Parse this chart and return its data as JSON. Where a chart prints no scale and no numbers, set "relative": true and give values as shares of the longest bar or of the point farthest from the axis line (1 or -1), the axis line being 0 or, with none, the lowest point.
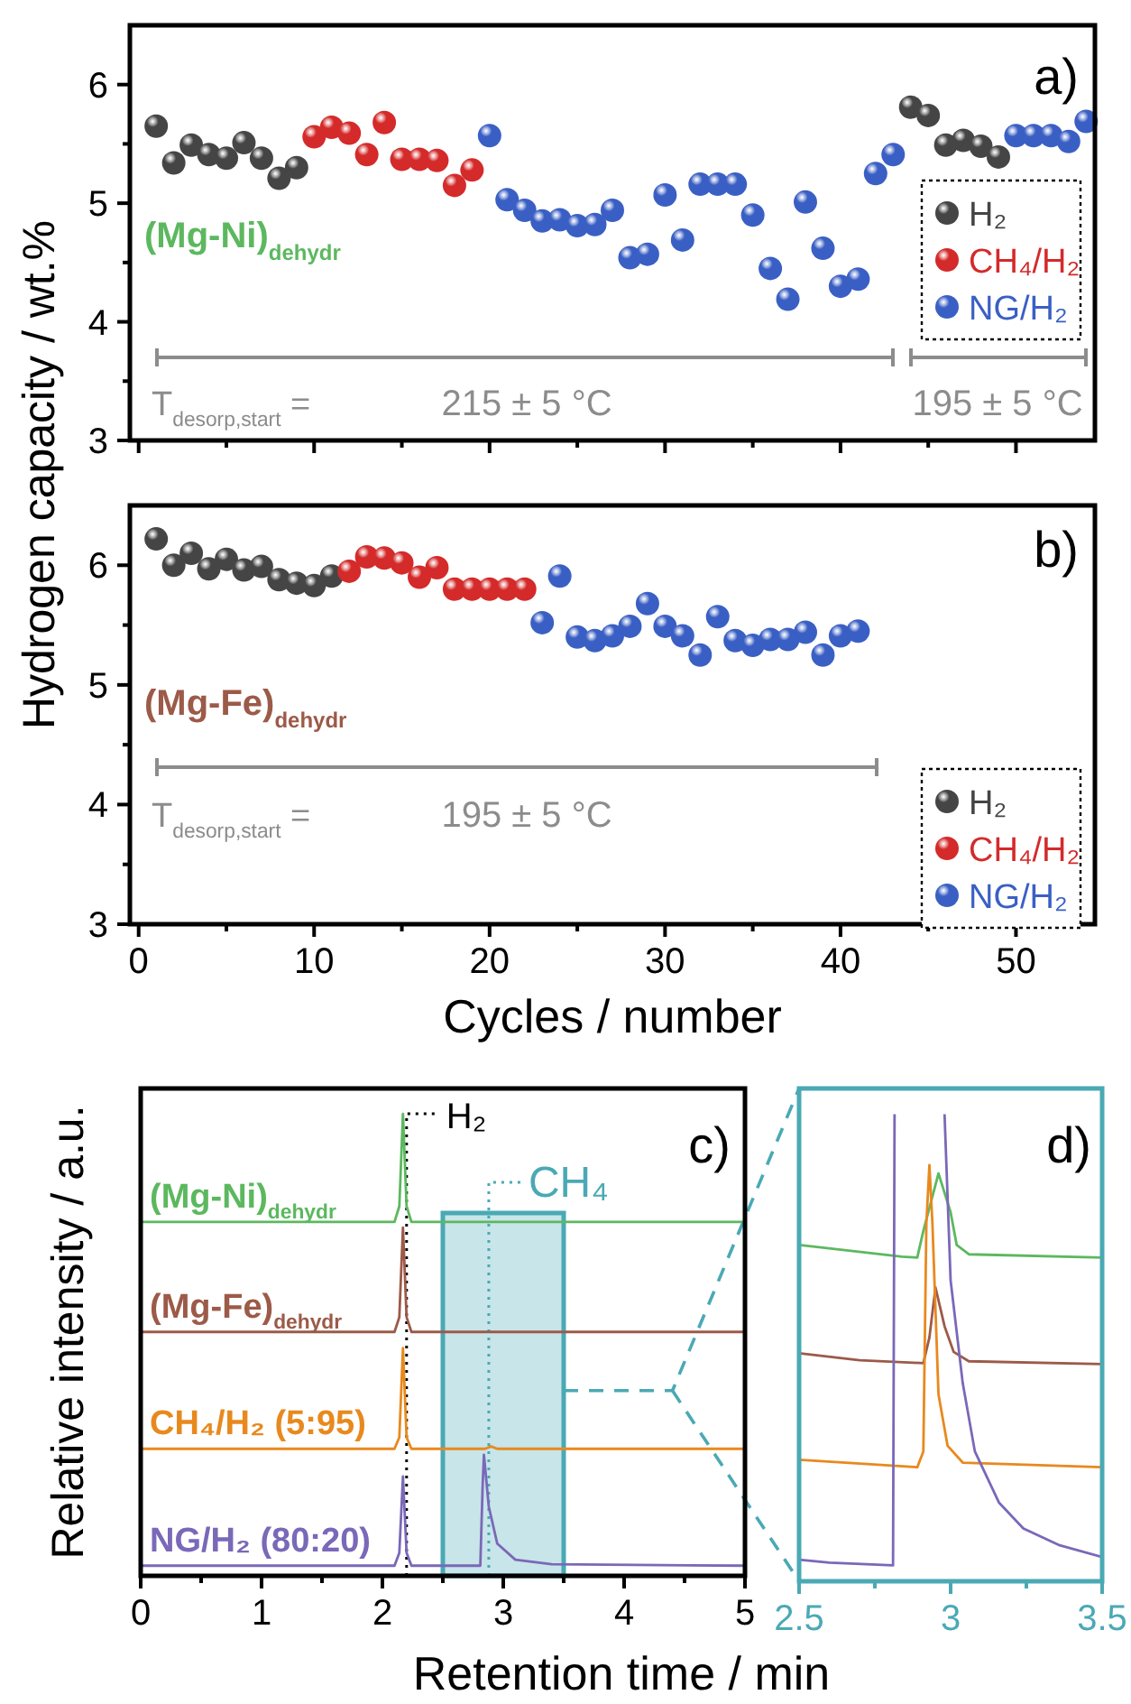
{
  "chart_data": [
    {
      "type": "scatter",
      "ylabel": "Hydrogen capacity / wt.%",
      "xlim": [
        -0.5,
        54.5
      ],
      "ylim": [
        3,
        6.5
      ],
      "xticks": [
        0,
        {
          "value": 5,
          "label": null
        },
        10,
        {
          "value": 15,
          "label": null
        },
        20,
        {
          "value": 25,
          "label": null
        },
        30,
        {
          "value": 35,
          "label": null
        },
        40,
        {
          "value": 45,
          "label": null
        },
        50
      ],
      "yticks": [
        3,
        {
          "value": 3.5,
          "label": null
        },
        4,
        {
          "value": 4.5,
          "label": null
        },
        5,
        {
          "value": 5.5,
          "label": null
        },
        6
      ],
      "tick_labels": "y",
      "marker": "circle",
      "legend": "right",
      "series": [
        {
          "name": "H₂",
          "color": "#454545",
          "x": [
            1,
            2,
            3,
            4,
            5,
            6,
            7,
            8,
            9,
            44,
            45,
            46,
            47,
            48,
            49
          ],
          "values": [
            5.65,
            5.34,
            5.49,
            5.41,
            5.38,
            5.51,
            5.38,
            5.21,
            5.3,
            5.81,
            5.74,
            5.49,
            5.53,
            5.48,
            5.39
          ]
        },
        {
          "name": "CH₄/H₂",
          "color": "#d42a2a",
          "x": [
            10,
            11,
            12,
            13,
            14,
            15,
            16,
            17,
            18,
            19
          ],
          "values": [
            5.56,
            5.64,
            5.59,
            5.41,
            5.68,
            5.37,
            5.37,
            5.36,
            5.15,
            5.28
          ]
        },
        {
          "name": "NG/H₂",
          "color": "#3a5fc4",
          "x": [
            20,
            21,
            22,
            23,
            24,
            25,
            26,
            27,
            28,
            29,
            30,
            31,
            32,
            33,
            34,
            35,
            36,
            37,
            38,
            39,
            40,
            41,
            42,
            43,
            50,
            51,
            52,
            53,
            54
          ],
          "values": [
            5.57,
            5.03,
            4.94,
            4.85,
            4.86,
            4.81,
            4.82,
            4.94,
            4.54,
            4.57,
            5.07,
            4.69,
            5.16,
            5.16,
            5.16,
            4.9,
            4.45,
            4.19,
            5.01,
            4.62,
            4.3,
            4.36,
            5.25,
            5.41,
            5.57,
            5.57,
            5.57,
            5.52,
            5.69
          ]
        }
      ],
      "annotations": [
        "a)",
        "(Mg-Ni)$_{dehydr}$",
        "T$_{desorp,start}$ =",
        "215 ± 5 °C",
        "195 ± 5 °C"
      ]
    },
    {
      "type": "scatter",
      "xlabel": "Cycles / number",
      "xlim": [
        -0.5,
        54.5
      ],
      "ylim": [
        3,
        6.5
      ],
      "xticks": [
        0,
        {
          "value": 5,
          "label": null
        },
        10,
        {
          "value": 15,
          "label": null
        },
        20,
        {
          "value": 25,
          "label": null
        },
        30,
        {
          "value": 35,
          "label": null
        },
        40,
        {
          "value": 45,
          "label": null
        },
        50
      ],
      "yticks": [
        3,
        {
          "value": 3.5,
          "label": null
        },
        4,
        {
          "value": 4.5,
          "label": null
        },
        5,
        {
          "value": 5.5,
          "label": null
        },
        6
      ],
      "marker": "circle",
      "legend": "bottom right",
      "series": [
        {
          "name": "H₂",
          "color": "#454545",
          "x": [
            1,
            2,
            3,
            4,
            5,
            6,
            7,
            8,
            9,
            10,
            11
          ],
          "values": [
            6.22,
            6.0,
            6.1,
            5.97,
            6.05,
            5.96,
            5.99,
            5.88,
            5.85,
            5.83,
            5.91
          ]
        },
        {
          "name": "CH₄/H₂",
          "color": "#d42a2a",
          "x": [
            12,
            13,
            14,
            15,
            16,
            17,
            18,
            19,
            20,
            21,
            22
          ],
          "values": [
            5.95,
            6.07,
            6.06,
            6.02,
            5.9,
            5.98,
            5.8,
            5.8,
            5.8,
            5.8,
            5.8
          ]
        },
        {
          "name": "NG/H₂",
          "color": "#3a5fc4",
          "x": [
            23,
            24,
            25,
            26,
            27,
            28,
            29,
            30,
            31,
            32,
            33,
            34,
            35,
            36,
            37,
            38,
            39,
            40,
            41
          ],
          "values": [
            5.52,
            5.91,
            5.4,
            5.37,
            5.41,
            5.49,
            5.68,
            5.49,
            5.41,
            5.25,
            5.57,
            5.37,
            5.33,
            5.38,
            5.38,
            5.44,
            5.25,
            5.41,
            5.45
          ]
        }
      ],
      "annotations": [
        "b)",
        "(Mg-Fe)$_{dehydr}$",
        "T$_{desorp,start}$ =",
        "195 ± 5 °C"
      ]
    },
    {
      "type": "line",
      "relative": true,
      "xlabel": "Retention time / min",
      "ylabel": "Relative intensity / a.u.",
      "xlim": [
        0,
        5
      ],
      "xticks": [
        0,
        {
          "value": 0.5,
          "label": null
        },
        1,
        {
          "value": 1.5,
          "label": null
        },
        2,
        {
          "value": 2.5,
          "label": null
        },
        3,
        {
          "value": 3.5,
          "label": null
        },
        4,
        {
          "value": 4.5,
          "label": null
        },
        5
      ],
      "tick_labels": "x",
      "line_style": "solid",
      "series": [
        {
          "name": "(Mg-Ni)$_{dehydr}$",
          "color": "#5cb85f",
          "x": [
            0,
            2.1,
            2.14,
            2.17,
            2.2,
            2.24,
            5
          ],
          "values": [
            0.766,
            0.766,
            0.8,
            1.0,
            0.8,
            0.766,
            0.766
          ]
        },
        {
          "name": "(Mg-Fe)$_{dehydr}$",
          "color": "#9c5a48",
          "x": [
            0,
            2.1,
            2.14,
            2.17,
            2.2,
            2.24,
            5
          ],
          "values": [
            0.528,
            0.528,
            0.56,
            0.754,
            0.56,
            0.528,
            0.528
          ]
        },
        {
          "name": "CH₄/H₂ (5:95)",
          "color": "#e8891e",
          "x": [
            0,
            2.1,
            2.14,
            2.17,
            2.2,
            2.24,
            2.85,
            2.9,
            2.95,
            5
          ],
          "values": [
            0.275,
            0.275,
            0.3,
            0.493,
            0.3,
            0.275,
            0.275,
            0.28,
            0.275,
            0.275
          ]
        },
        {
          "name": "NG/H₂ (80:20)",
          "color": "#7a68b8",
          "x": [
            0,
            2.1,
            2.14,
            2.17,
            2.2,
            2.24,
            2.81,
            2.83,
            2.84,
            2.88,
            2.95,
            3.1,
            3.4,
            5
          ],
          "values": [
            0.022,
            0.022,
            0.05,
            0.215,
            0.05,
            0.022,
            0.022,
            0.2,
            0.262,
            0.15,
            0.07,
            0.035,
            0.025,
            0.022
          ]
        }
      ],
      "ref_lines": [
        {
          "axis": "x",
          "value": 2.2,
          "label": "H₂",
          "color": "#000000",
          "line_style": "dotted"
        },
        {
          "axis": "x",
          "value": 2.88,
          "label": "CH₄",
          "color": "#4aa9b5",
          "line_style": "dotted"
        }
      ],
      "bands": [
        {
          "axis": "x",
          "from": 2.5,
          "to": 3.5,
          "color": "#4aa9b5"
        }
      ],
      "annotations": [
        "c)"
      ]
    },
    {
      "type": "line",
      "relative": true,
      "xlim": [
        2.5,
        3.5
      ],
      "xticks": [
        2.5,
        {
          "value": 2.75,
          "label": null
        },
        3,
        {
          "value": 3.25,
          "label": null
        },
        3.5
      ],
      "tick_labels": "x",
      "line_style": "solid",
      "series": [
        {
          "color": "#5cb85f",
          "x": [
            2.5,
            2.84,
            2.89,
            2.91,
            2.96,
            3.0,
            3.02,
            3.06,
            3.5
          ],
          "values": [
            0.72,
            0.695,
            0.693,
            0.75,
            0.873,
            0.79,
            0.72,
            0.7,
            0.693
          ]
        },
        {
          "color": "#9c5a48",
          "x": [
            2.5,
            2.7,
            2.91,
            2.93,
            2.95,
            2.98,
            3.01,
            3.06,
            3.5
          ],
          "values": [
            0.488,
            0.473,
            0.467,
            0.522,
            0.629,
            0.546,
            0.491,
            0.471,
            0.465
          ]
        },
        {
          "color": "#e8891e",
          "x": [
            2.5,
            2.89,
            2.91,
            2.92,
            2.93,
            2.94,
            2.96,
            2.99,
            3.04,
            3.5
          ],
          "values": [
            0.26,
            0.244,
            0.278,
            0.766,
            0.891,
            0.766,
            0.4,
            0.29,
            0.254,
            0.244
          ]
        },
        {
          "color": "#7a68b8",
          "x": [
            2.5,
            2.6,
            2.81,
            2.815,
            2.9,
            2.98,
            3.0,
            3.04,
            3.08,
            3.16,
            3.24,
            3.36,
            3.5
          ],
          "values": [
            0.046,
            0.04,
            0.034,
            1.0,
            null,
            1.0,
            0.644,
            0.424,
            0.278,
            0.168,
            0.113,
            0.077,
            0.052
          ]
        }
      ],
      "annotations": [
        "d)"
      ]
    }
  ]
}
